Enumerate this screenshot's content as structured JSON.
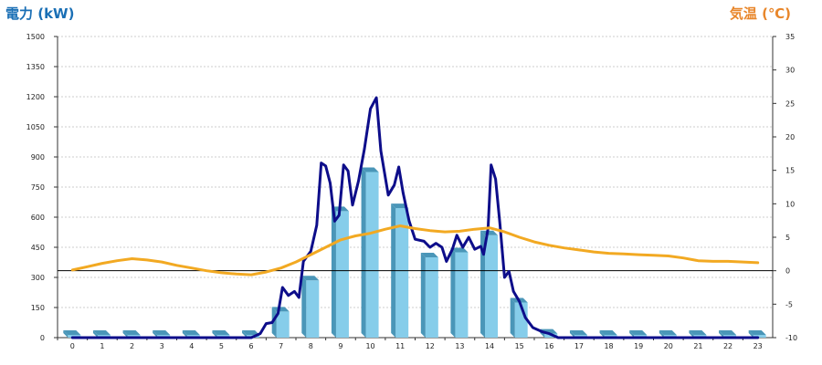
{
  "chart_data": {
    "type": "bar+line",
    "left_axis_label": "電力 (kW)",
    "right_axis_label": "気温 (℃)",
    "x": [
      "0",
      "1",
      "2",
      "3",
      "4",
      "5",
      "6",
      "7",
      "8",
      "9",
      "10",
      "11",
      "12",
      "13",
      "14",
      "15",
      "16",
      "17",
      "18",
      "19",
      "20",
      "21",
      "22",
      "23"
    ],
    "left_ticks": [
      "0",
      "150",
      "300",
      "450",
      "600",
      "750",
      "900",
      "1050",
      "1200",
      "1350",
      "1500"
    ],
    "right_ticks": [
      "-10",
      "-5",
      "0",
      "5",
      "10",
      "15",
      "20",
      "25",
      "30",
      "35"
    ],
    "left_ylim": [
      0,
      1500
    ],
    "right_ylim": [
      -10,
      35
    ],
    "grid": true,
    "series": [
      {
        "kind": "bar",
        "axis": "left",
        "values": [
          0,
          0,
          0,
          0,
          0,
          0,
          0,
          130,
          285,
          630,
          825,
          645,
          400,
          425,
          510,
          175,
          20,
          0,
          0,
          0,
          0,
          0,
          0,
          0
        ]
      },
      {
        "kind": "line",
        "axis": "left",
        "points": [
          [
            0,
            0
          ],
          [
            0.5,
            0
          ],
          [
            1,
            0
          ],
          [
            1.5,
            0
          ],
          [
            2,
            0
          ],
          [
            2.5,
            0
          ],
          [
            3,
            0
          ],
          [
            3.5,
            0
          ],
          [
            4,
            0
          ],
          [
            4.5,
            0
          ],
          [
            5,
            0
          ],
          [
            5.5,
            0
          ],
          [
            6,
            0
          ],
          [
            6.3,
            20
          ],
          [
            6.5,
            70
          ],
          [
            6.7,
            75
          ],
          [
            6.9,
            120
          ],
          [
            7.05,
            250
          ],
          [
            7.25,
            210
          ],
          [
            7.45,
            230
          ],
          [
            7.6,
            200
          ],
          [
            7.75,
            380
          ],
          [
            8,
            430
          ],
          [
            8.2,
            560
          ],
          [
            8.35,
            870
          ],
          [
            8.5,
            855
          ],
          [
            8.65,
            770
          ],
          [
            8.8,
            580
          ],
          [
            8.95,
            610
          ],
          [
            9.1,
            860
          ],
          [
            9.25,
            830
          ],
          [
            9.4,
            660
          ],
          [
            9.6,
            780
          ],
          [
            9.8,
            940
          ],
          [
            10,
            1140
          ],
          [
            10.2,
            1195
          ],
          [
            10.35,
            930
          ],
          [
            10.6,
            710
          ],
          [
            10.8,
            760
          ],
          [
            10.95,
            850
          ],
          [
            11.1,
            720
          ],
          [
            11.3,
            580
          ],
          [
            11.5,
            490
          ],
          [
            11.8,
            480
          ],
          [
            12,
            450
          ],
          [
            12.2,
            470
          ],
          [
            12.4,
            450
          ],
          [
            12.55,
            380
          ],
          [
            12.75,
            440
          ],
          [
            12.9,
            510
          ],
          [
            13.1,
            450
          ],
          [
            13.3,
            500
          ],
          [
            13.5,
            440
          ],
          [
            13.7,
            455
          ],
          [
            13.8,
            415
          ],
          [
            13.95,
            545
          ],
          [
            14.05,
            860
          ],
          [
            14.2,
            790
          ],
          [
            14.35,
            560
          ],
          [
            14.5,
            300
          ],
          [
            14.65,
            330
          ],
          [
            14.8,
            230
          ],
          [
            15,
            180
          ],
          [
            15.2,
            100
          ],
          [
            15.45,
            50
          ],
          [
            15.75,
            30
          ],
          [
            16,
            20
          ],
          [
            16.3,
            0
          ],
          [
            16.6,
            0
          ],
          [
            17,
            0
          ],
          [
            18,
            0
          ],
          [
            19,
            0
          ],
          [
            20,
            0
          ],
          [
            21,
            0
          ],
          [
            22,
            0
          ],
          [
            23,
            0
          ]
        ]
      },
      {
        "kind": "line",
        "axis": "right",
        "points": [
          [
            0,
            0.1
          ],
          [
            0.5,
            0.6
          ],
          [
            1,
            1.1
          ],
          [
            1.5,
            1.5
          ],
          [
            2,
            1.8
          ],
          [
            2.5,
            1.6
          ],
          [
            3,
            1.3
          ],
          [
            3.5,
            0.8
          ],
          [
            4,
            0.4
          ],
          [
            4.5,
            0.0
          ],
          [
            5,
            -0.3
          ],
          [
            5.5,
            -0.5
          ],
          [
            6,
            -0.6
          ],
          [
            6.5,
            -0.2
          ],
          [
            7,
            0.4
          ],
          [
            7.5,
            1.3
          ],
          [
            8,
            2.4
          ],
          [
            8.5,
            3.5
          ],
          [
            9,
            4.6
          ],
          [
            9.5,
            5.2
          ],
          [
            10,
            5.6
          ],
          [
            10.5,
            6.2
          ],
          [
            11,
            6.7
          ],
          [
            11.5,
            6.3
          ],
          [
            12,
            6.0
          ],
          [
            12.5,
            5.8
          ],
          [
            13,
            5.9
          ],
          [
            13.5,
            6.2
          ],
          [
            14,
            6.4
          ],
          [
            14.5,
            5.8
          ],
          [
            15,
            5.0
          ],
          [
            15.5,
            4.3
          ],
          [
            16,
            3.8
          ],
          [
            16.5,
            3.4
          ],
          [
            17,
            3.1
          ],
          [
            17.5,
            2.8
          ],
          [
            18,
            2.6
          ],
          [
            18.5,
            2.5
          ],
          [
            19,
            2.4
          ],
          [
            19.5,
            2.3
          ],
          [
            20,
            2.2
          ],
          [
            20.5,
            1.9
          ],
          [
            21,
            1.5
          ],
          [
            21.5,
            1.4
          ],
          [
            22,
            1.4
          ],
          [
            22.5,
            1.3
          ],
          [
            23,
            1.2
          ]
        ]
      }
    ],
    "colors": {
      "bar_front": "#86cdea",
      "bar_side": "#4a96b8",
      "bar_top": "#b5e2f3",
      "power_line": "#0d0d8a",
      "temp_line": "#f2a922",
      "zero_line": "#000000",
      "grid": "#bdbdbd"
    }
  }
}
